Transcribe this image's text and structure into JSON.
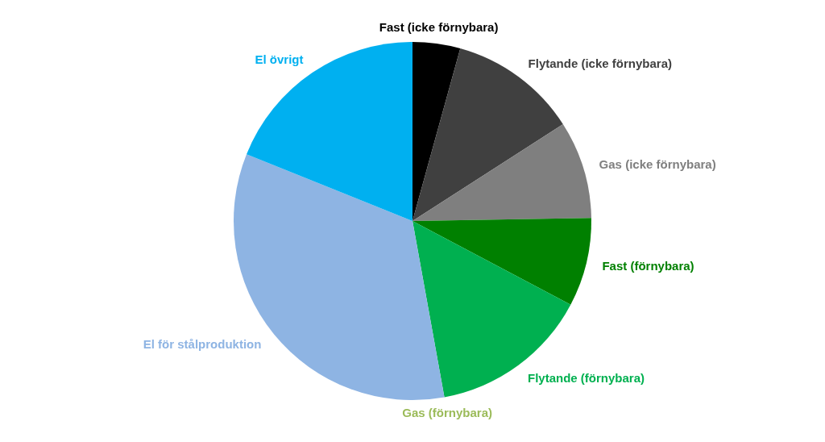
{
  "chart_data": {
    "type": "pie",
    "categories": [
      "Fast (icke förnybara)",
      "Flytande (icke förnybara)",
      "Gas (icke förnybara)",
      "Fast (förnybara)",
      "Flytande (förnybara)",
      "Gas (förnybara)",
      "El för stålproduktion",
      "El övrigt"
    ],
    "values": [
      4.3,
      11.6,
      8.8,
      8.0,
      14.4,
      0,
      33.9,
      18.9
    ],
    "colors": [
      "#000000",
      "#404040",
      "#7f7f7f",
      "#008000",
      "#00b050",
      "#9bbb59",
      "#8eb4e3",
      "#00b0f0"
    ]
  }
}
